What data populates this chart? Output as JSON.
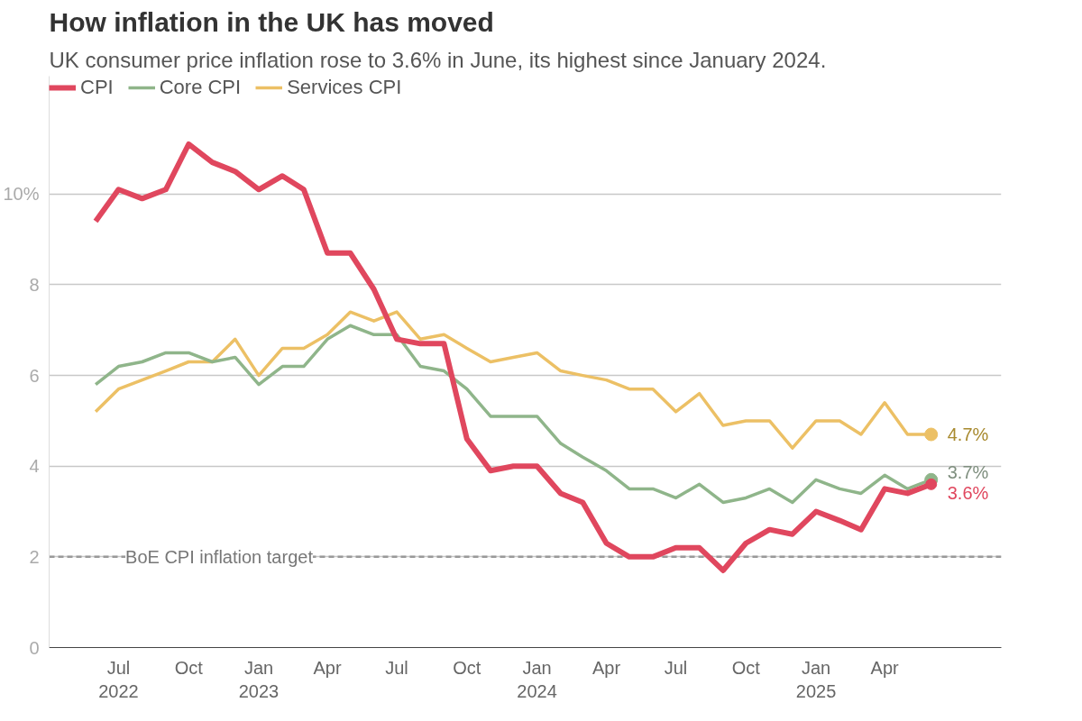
{
  "chart_data": {
    "type": "line",
    "title": "How inflation in the UK has moved",
    "subtitle": "UK consumer price inflation rose to 3.6% in June, its highest since January 2024.",
    "x": [
      "2022-06",
      "2022-07",
      "2022-08",
      "2022-09",
      "2022-10",
      "2022-11",
      "2022-12",
      "2023-01",
      "2023-02",
      "2023-03",
      "2023-04",
      "2023-05",
      "2023-06",
      "2023-07",
      "2023-08",
      "2023-09",
      "2023-10",
      "2023-11",
      "2023-12",
      "2024-01",
      "2024-02",
      "2024-03",
      "2024-04",
      "2024-05",
      "2024-06",
      "2024-07",
      "2024-08",
      "2024-09",
      "2024-10",
      "2024-11",
      "2024-12",
      "2025-01",
      "2025-02",
      "2025-03",
      "2025-04",
      "2025-05",
      "2025-06"
    ],
    "series": [
      {
        "name": "CPI",
        "color": "#e0475e",
        "values": [
          9.4,
          10.1,
          9.9,
          10.1,
          11.1,
          10.7,
          10.5,
          10.1,
          10.4,
          10.1,
          8.7,
          8.7,
          7.9,
          6.8,
          6.7,
          6.7,
          4.6,
          3.9,
          4.0,
          4.0,
          3.4,
          3.2,
          2.3,
          2.0,
          2.0,
          2.2,
          2.2,
          1.7,
          2.3,
          2.6,
          2.5,
          3.0,
          2.8,
          2.6,
          3.5,
          3.4,
          3.6
        ]
      },
      {
        "name": "Core CPI",
        "color": "#8fb58a",
        "values": [
          5.8,
          6.2,
          6.3,
          6.5,
          6.5,
          6.3,
          6.4,
          5.8,
          6.2,
          6.2,
          6.8,
          7.1,
          6.9,
          6.9,
          6.2,
          6.1,
          5.7,
          5.1,
          5.1,
          5.1,
          4.5,
          4.2,
          3.9,
          3.5,
          3.5,
          3.3,
          3.6,
          3.2,
          3.3,
          3.5,
          3.2,
          3.7,
          3.5,
          3.4,
          3.8,
          3.5,
          3.7
        ]
      },
      {
        "name": "Services CPI",
        "color": "#ecc065",
        "values": [
          5.2,
          5.7,
          5.9,
          6.1,
          6.3,
          6.3,
          6.8,
          6.0,
          6.6,
          6.6,
          6.9,
          7.4,
          7.2,
          7.4,
          6.8,
          6.9,
          6.6,
          6.3,
          6.4,
          6.5,
          6.1,
          6.0,
          5.9,
          5.7,
          5.7,
          5.2,
          5.6,
          4.9,
          5.0,
          5.0,
          4.4,
          5.0,
          5.0,
          4.7,
          5.4,
          4.7,
          4.7
        ]
      }
    ],
    "annotations": [
      {
        "text": "4.7%",
        "x": "2025-06",
        "y": 4.7
      },
      {
        "text": "3.7%",
        "x": "2025-06",
        "y": 3.7
      },
      {
        "text": "3.6%",
        "x": "2025-06",
        "y": 3.6
      }
    ],
    "ref_lines": [
      {
        "axis": "y",
        "value": 2,
        "label": "BoE CPI inflation target",
        "color": "#999999",
        "line_style": "dashed"
      }
    ],
    "xlim": [
      "2022-04",
      "2025-09"
    ],
    "xticks": [
      {
        "value": "2022-07",
        "label": "Jul\n2022"
      },
      {
        "value": "2022-10",
        "label": "Oct"
      },
      {
        "value": "2023-01",
        "label": "Jan\n2023"
      },
      {
        "value": "2023-04",
        "label": "Apr"
      },
      {
        "value": "2023-07",
        "label": "Jul"
      },
      {
        "value": "2023-10",
        "label": "Oct"
      },
      {
        "value": "2024-01",
        "label": "Jan\n2024"
      },
      {
        "value": "2024-04",
        "label": "Apr"
      },
      {
        "value": "2024-07",
        "label": "Jul"
      },
      {
        "value": "2024-10",
        "label": "Oct"
      },
      {
        "value": "2025-01",
        "label": "Jan\n2025"
      },
      {
        "value": "2025-04",
        "label": "Apr"
      }
    ],
    "ylim": [
      0,
      12.6
    ],
    "yticks": [
      0,
      2,
      4,
      6,
      8,
      {
        "value": 10,
        "label": "10%"
      }
    ],
    "grid": "y",
    "legend": "top left",
    "line_style": "solid"
  }
}
